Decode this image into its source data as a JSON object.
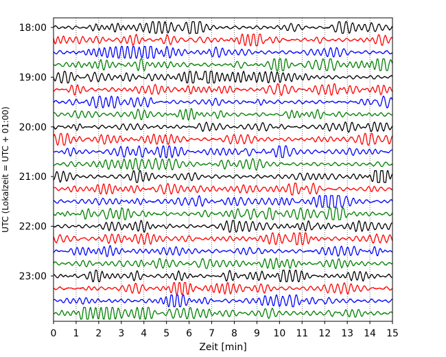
{
  "chart_data": {
    "type": "line",
    "subtype": "helicorder",
    "xlabel": "Zeit  [min]",
    "ylabel": "UTC (Lokalzeit = UTC + 01:00)",
    "xlim": [
      0,
      15
    ],
    "x_ticks": [
      0,
      1,
      2,
      3,
      4,
      5,
      6,
      7,
      8,
      9,
      10,
      11,
      12,
      13,
      14,
      15
    ],
    "y_ticks": [
      "18:00",
      "19:00",
      "20:00",
      "21:00",
      "22:00",
      "23:00"
    ],
    "trace_interval_min": 15,
    "start_time": "18:00",
    "trace_count": 24,
    "trace_colors": [
      "#000000",
      "#ff0000",
      "#0000ff",
      "#008000"
    ],
    "grid": "vertical dotted lines at each minute"
  }
}
